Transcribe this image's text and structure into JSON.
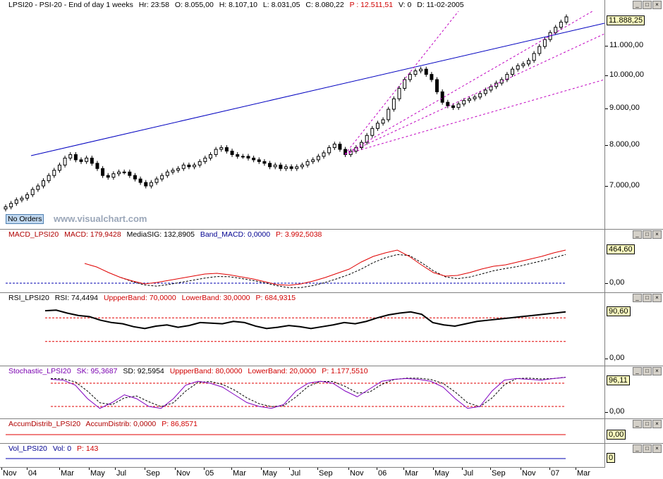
{
  "main": {
    "header": {
      "symbol": "LPSI20 - PSI-20 - End of day 1 weeks",
      "hour": "Hr: 23:58",
      "open": "O: 8.055,00",
      "high": "H: 8.107,10",
      "low": "L: 8.031,05",
      "close": "C: 8.080,22",
      "price": "P : 12.511,51",
      "volume": "V: 0",
      "date": "D: 11-02-2005"
    },
    "current_value": "11.888,25",
    "ticks": [
      "11.000,00",
      "10.000,00",
      "9.000,00",
      "8.000,00",
      "7.000,00"
    ],
    "watermark": "www.visualchart.com",
    "no_orders": "No Orders"
  },
  "macd": {
    "header": {
      "name": "MACD_LPSI20",
      "macd": "MACD: 179,9428",
      "signal": "MediaSIG: 132,8905",
      "band": "Band_MACD: 0,0000",
      "p": "P: 3.992,5038"
    },
    "current_value": "464,60",
    "ticks": [
      "0,00"
    ]
  },
  "rsi": {
    "header": {
      "name": "RSI_LPSI20",
      "rsi": "RSI: 74,4494",
      "upper": "UppperBand: 70,0000",
      "lower": "LowerBand: 30,0000",
      "p": "P: 684,9315"
    },
    "current_value": "90,60",
    "ticks": [
      "0,00"
    ]
  },
  "stoch": {
    "header": {
      "name": "Stochastic_LPSI20",
      "sk": "SK: 95,3687",
      "sd": "SD: 92,5954",
      "upper": "UppperBand: 80,0000",
      "lower": "LowerBand: 20,0000",
      "p": "P: 1.177,5510"
    },
    "current_value": "96,11",
    "ticks": [
      "0,00"
    ]
  },
  "accum": {
    "header": {
      "name": "AccumDistrib_LPSI20",
      "value": "AccumDistrib: 0,0000",
      "p": "P: 86,8571"
    },
    "current_value": "0,00"
  },
  "vol": {
    "header": {
      "name": "Vol_LPSI20",
      "value": "Vol: 0",
      "p": "P: 143"
    },
    "current_value": "0"
  },
  "xaxis": [
    "Nov",
    "04",
    "Mar",
    "May",
    "Jul",
    "Sep",
    "Nov",
    "05",
    "Mar",
    "May",
    "Jul",
    "Sep",
    "Nov",
    "06",
    "Mar",
    "May",
    "Jul",
    "Sep",
    "Nov",
    "07",
    "Mar"
  ],
  "colors": {
    "price_trend": "#0000c0",
    "fan": "#c000c0",
    "macd": "#e00000",
    "signal": "#000000",
    "rsi": "#000000",
    "band": "#e00000",
    "sk": "#8000c0",
    "sd": "#000000"
  },
  "chart_data": {
    "type": "candlestick",
    "ylim": [
      6200,
      12200
    ],
    "close": [
      6400,
      6500,
      6600,
      6650,
      6750,
      6900,
      7000,
      7150,
      7300,
      7450,
      7600,
      7800,
      7900,
      7750,
      7700,
      7800,
      7650,
      7500,
      7300,
      7250,
      7350,
      7400,
      7400,
      7300,
      7200,
      7100,
      7000,
      7100,
      7200,
      7300,
      7400,
      7450,
      7500,
      7600,
      7550,
      7600,
      7700,
      7800,
      7900,
      8050,
      8100,
      8000,
      7900,
      7850,
      7850,
      7800,
      7750,
      7700,
      7650,
      7550,
      7600,
      7500,
      7550,
      7500,
      7550,
      7600,
      7700,
      7750,
      7850,
      7950,
      8100,
      8200,
      8050,
      7900,
      8000,
      8100,
      8250,
      8450,
      8650,
      8800,
      8900,
      9200,
      9500,
      9800,
      10050,
      10200,
      10300,
      10350,
      10200,
      10050,
      9700,
      9400,
      9300,
      9250,
      9350,
      9450,
      9500,
      9550,
      9650,
      9750,
      9850,
      9950,
      10050,
      10200,
      10350,
      10450,
      10500,
      10600,
      10800,
      11000,
      11200,
      11400,
      11550,
      11700,
      11850
    ]
  }
}
